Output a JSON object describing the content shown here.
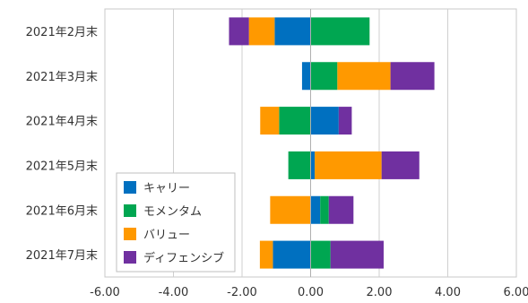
{
  "chart_data": {
    "type": "bar",
    "orientation": "horizontal",
    "stacked": "diverging",
    "categories": [
      "2021年2月末",
      "2021年3月末",
      "2021年4月末",
      "2021年5月末",
      "2021年6月末",
      "2021年7月末"
    ],
    "series": [
      {
        "name": "キャリー",
        "color": "#0070c0",
        "values": [
          -1.05,
          -0.25,
          0.82,
          0.12,
          0.28,
          -1.1
        ]
      },
      {
        "name": "モメンタム",
        "color": "#00a651",
        "values": [
          1.72,
          0.78,
          -0.92,
          -0.65,
          0.25,
          0.58
        ]
      },
      {
        "name": "バリュー",
        "color": "#ff9900",
        "values": [
          -0.75,
          1.55,
          -0.55,
          1.95,
          -1.18,
          -0.38
        ]
      },
      {
        "name": "ディフェンシブ",
        "color": "#7030a0",
        "values": [
          -0.58,
          1.28,
          0.38,
          1.1,
          0.72,
          1.55
        ]
      }
    ],
    "xlim": [
      -6,
      6
    ],
    "xticks": [
      "-6.00",
      "-4.00",
      "-2.00",
      "0.00",
      "2.00",
      "4.00",
      "6.00"
    ],
    "grid": true,
    "legend_position": "bottom-left"
  }
}
